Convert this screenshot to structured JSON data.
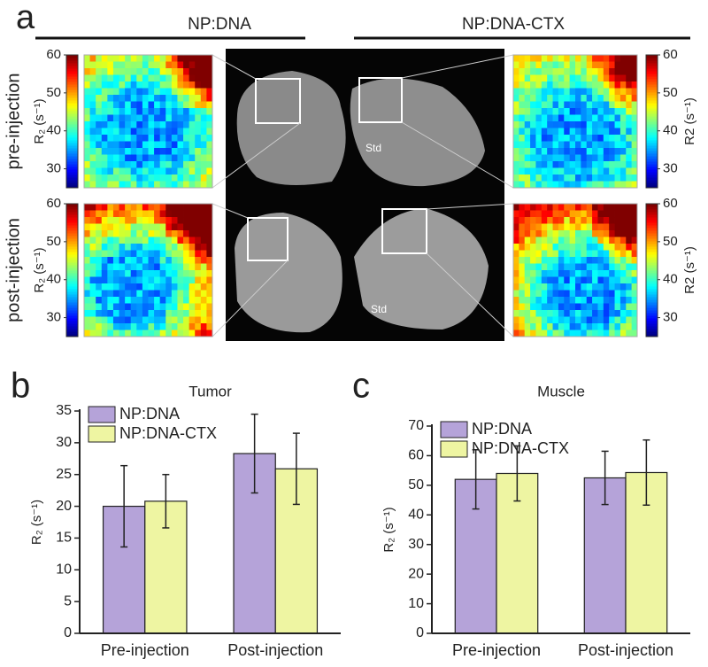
{
  "panel_a": {
    "label": "a",
    "groups": [
      "NP:DNA",
      "NP:DNA-CTX"
    ],
    "rows": [
      "pre-injection",
      "post-injection"
    ],
    "colorbar": {
      "label_left": "R₂ (s⁻¹)",
      "label_right": "R2 (s⁻¹)",
      "ylim": [
        25,
        60
      ],
      "yticks": [
        30,
        40,
        50,
        60
      ]
    },
    "std": "Std"
  },
  "chart_data": [
    {
      "panel": "b",
      "type": "bar",
      "title": "Tumor",
      "y_label": "R₂ (s⁻¹)",
      "categories": [
        "Pre-injection",
        "Post-injection"
      ],
      "series": [
        {
          "name": "NP:DNA",
          "color": "#b5a3d9",
          "values": [
            20,
            28.3
          ],
          "errors": [
            6.4,
            6.2
          ]
        },
        {
          "name": "NP:DNA-CTX",
          "color": "#eef5a2",
          "values": [
            20.8,
            25.9
          ],
          "errors": [
            4.2,
            5.6
          ]
        }
      ],
      "ylim": [
        0,
        35
      ],
      "yticks": [
        0,
        5,
        10,
        15,
        20,
        25,
        30,
        35
      ],
      "legend": "upper left"
    },
    {
      "panel": "c",
      "type": "bar",
      "title": "Muscle",
      "y_label": "R₂ (s⁻¹)",
      "categories": [
        "Pre-injection",
        "Post-injection"
      ],
      "series": [
        {
          "name": "NP:DNA",
          "color": "#b5a3d9",
          "values": [
            52,
            52.5
          ],
          "errors": [
            10,
            9
          ]
        },
        {
          "name": "NP:DNA-CTX",
          "color": "#eef5a2",
          "values": [
            54,
            54.3
          ],
          "errors": [
            9.3,
            11
          ]
        }
      ],
      "ylim": [
        0,
        70
      ],
      "yticks": [
        0,
        10,
        20,
        30,
        40,
        50,
        60,
        70
      ],
      "legend": "upper left"
    }
  ]
}
